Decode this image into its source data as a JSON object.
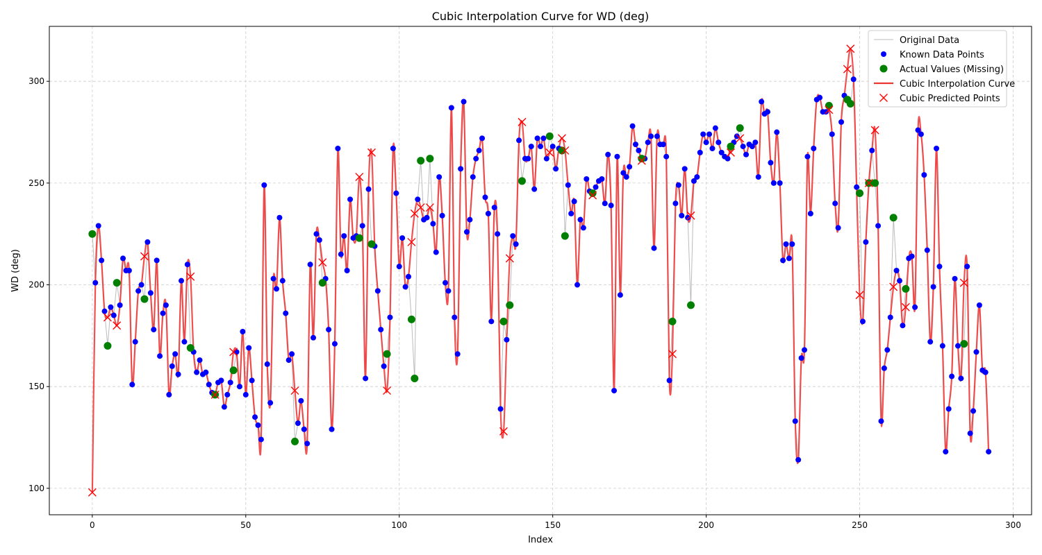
{
  "chart_data": {
    "type": "line",
    "title": "Cubic Interpolation Curve for WD (deg)",
    "xlabel": "Index",
    "ylabel": "WD (deg)",
    "xlim": [
      -14,
      306
    ],
    "ylim": [
      87,
      327
    ],
    "xticks": [
      0,
      50,
      100,
      150,
      200,
      250,
      300
    ],
    "yticks": [
      100,
      150,
      200,
      250,
      300
    ],
    "grid": true,
    "legend_position": "top-right",
    "colors": {
      "original": "#bbbbbb",
      "known": "#0000ff",
      "actual": "#008000",
      "cubic_curve": "#ee3333",
      "predicted": "#ff0000"
    },
    "legend": [
      {
        "label": "Original Data",
        "kind": "line",
        "color": "#bbbbbb"
      },
      {
        "label": "Known Data Points",
        "kind": "dot",
        "color": "#0000ff"
      },
      {
        "label": "Actual Values (Missing)",
        "kind": "dot-large",
        "color": "#008000"
      },
      {
        "label": "Cubic Interpolation Curve",
        "kind": "line-thick",
        "color": "#ee3333"
      },
      {
        "label": "Cubic Predicted Points",
        "kind": "x",
        "color": "#ff0000"
      }
    ],
    "known_points": [
      [
        1,
        201
      ],
      [
        2,
        229
      ],
      [
        3,
        212
      ],
      [
        4,
        187
      ],
      [
        6,
        189
      ],
      [
        7,
        185
      ],
      [
        9,
        190
      ],
      [
        10,
        213
      ],
      [
        11,
        207
      ],
      [
        12,
        207
      ],
      [
        13,
        151
      ],
      [
        14,
        172
      ],
      [
        15,
        197
      ],
      [
        16,
        200
      ],
      [
        18,
        221
      ],
      [
        19,
        196
      ],
      [
        20,
        178
      ],
      [
        21,
        212
      ],
      [
        22,
        165
      ],
      [
        23,
        186
      ],
      [
        24,
        190
      ],
      [
        25,
        146
      ],
      [
        26,
        160
      ],
      [
        27,
        166
      ],
      [
        28,
        156
      ],
      [
        29,
        202
      ],
      [
        30,
        172
      ],
      [
        31,
        210
      ],
      [
        33,
        167
      ],
      [
        34,
        157
      ],
      [
        35,
        163
      ],
      [
        36,
        156
      ],
      [
        37,
        157
      ],
      [
        38,
        151
      ],
      [
        39,
        147
      ],
      [
        41,
        152
      ],
      [
        42,
        153
      ],
      [
        43,
        140
      ],
      [
        44,
        146
      ],
      [
        45,
        152
      ],
      [
        47,
        167
      ],
      [
        48,
        150
      ],
      [
        49,
        177
      ],
      [
        50,
        146
      ],
      [
        51,
        169
      ],
      [
        52,
        153
      ],
      [
        53,
        135
      ],
      [
        54,
        131
      ],
      [
        55,
        124
      ],
      [
        56,
        249
      ],
      [
        57,
        161
      ],
      [
        58,
        142
      ],
      [
        59,
        203
      ],
      [
        60,
        198
      ],
      [
        61,
        233
      ],
      [
        62,
        202
      ],
      [
        63,
        186
      ],
      [
        64,
        163
      ],
      [
        65,
        166
      ],
      [
        67,
        132
      ],
      [
        68,
        143
      ],
      [
        69,
        129
      ],
      [
        70,
        122
      ],
      [
        71,
        210
      ],
      [
        72,
        174
      ],
      [
        73,
        225
      ],
      [
        74,
        222
      ],
      [
        76,
        203
      ],
      [
        77,
        178
      ],
      [
        78,
        129
      ],
      [
        79,
        171
      ],
      [
        80,
        267
      ],
      [
        81,
        215
      ],
      [
        82,
        224
      ],
      [
        83,
        207
      ],
      [
        84,
        242
      ],
      [
        85,
        223
      ],
      [
        86,
        224
      ],
      [
        88,
        229
      ],
      [
        89,
        154
      ],
      [
        90,
        247
      ],
      [
        92,
        219
      ],
      [
        93,
        197
      ],
      [
        94,
        178
      ],
      [
        95,
        160
      ],
      [
        97,
        184
      ],
      [
        98,
        267
      ],
      [
        99,
        245
      ],
      [
        100,
        209
      ],
      [
        101,
        223
      ],
      [
        102,
        199
      ],
      [
        103,
        204
      ],
      [
        106,
        242
      ],
      [
        108,
        232
      ],
      [
        109,
        233
      ],
      [
        111,
        230
      ],
      [
        112,
        216
      ],
      [
        113,
        253
      ],
      [
        114,
        234
      ],
      [
        115,
        201
      ],
      [
        116,
        197
      ],
      [
        117,
        287
      ],
      [
        118,
        184
      ],
      [
        119,
        166
      ],
      [
        120,
        257
      ],
      [
        121,
        290
      ],
      [
        122,
        226
      ],
      [
        123,
        232
      ],
      [
        124,
        253
      ],
      [
        125,
        262
      ],
      [
        126,
        266
      ],
      [
        127,
        272
      ],
      [
        128,
        243
      ],
      [
        129,
        235
      ],
      [
        130,
        182
      ],
      [
        131,
        238
      ],
      [
        132,
        225
      ],
      [
        133,
        139
      ],
      [
        135,
        173
      ],
      [
        137,
        224
      ],
      [
        138,
        220
      ],
      [
        139,
        271
      ],
      [
        141,
        262
      ],
      [
        142,
        262
      ],
      [
        143,
        268
      ],
      [
        144,
        247
      ],
      [
        145,
        272
      ],
      [
        146,
        268
      ],
      [
        147,
        272
      ],
      [
        148,
        262
      ],
      [
        150,
        268
      ],
      [
        151,
        257
      ],
      [
        152,
        267
      ],
      [
        155,
        249
      ],
      [
        156,
        235
      ],
      [
        157,
        241
      ],
      [
        158,
        200
      ],
      [
        159,
        232
      ],
      [
        160,
        228
      ],
      [
        161,
        252
      ],
      [
        162,
        246
      ],
      [
        164,
        248
      ],
      [
        165,
        251
      ],
      [
        166,
        252
      ],
      [
        167,
        240
      ],
      [
        168,
        264
      ],
      [
        169,
        239
      ],
      [
        170,
        148
      ],
      [
        171,
        263
      ],
      [
        172,
        195
      ],
      [
        173,
        255
      ],
      [
        174,
        253
      ],
      [
        175,
        258
      ],
      [
        176,
        278
      ],
      [
        177,
        269
      ],
      [
        178,
        266
      ],
      [
        180,
        262
      ],
      [
        181,
        270
      ],
      [
        182,
        273
      ],
      [
        183,
        218
      ],
      [
        184,
        273
      ],
      [
        185,
        269
      ],
      [
        186,
        269
      ],
      [
        187,
        263
      ],
      [
        188,
        153
      ],
      [
        190,
        240
      ],
      [
        191,
        249
      ],
      [
        192,
        234
      ],
      [
        193,
        257
      ],
      [
        194,
        233
      ],
      [
        196,
        251
      ],
      [
        197,
        253
      ],
      [
        198,
        265
      ],
      [
        199,
        274
      ],
      [
        200,
        270
      ],
      [
        201,
        274
      ],
      [
        202,
        267
      ],
      [
        203,
        277
      ],
      [
        204,
        270
      ],
      [
        205,
        265
      ],
      [
        206,
        263
      ],
      [
        207,
        262
      ],
      [
        208,
        268
      ],
      [
        209,
        270
      ],
      [
        210,
        273
      ],
      [
        212,
        268
      ],
      [
        213,
        264
      ],
      [
        214,
        269
      ],
      [
        215,
        268
      ],
      [
        216,
        270
      ],
      [
        217,
        253
      ],
      [
        218,
        290
      ],
      [
        219,
        284
      ],
      [
        220,
        285
      ],
      [
        221,
        260
      ],
      [
        222,
        250
      ],
      [
        223,
        275
      ],
      [
        224,
        250
      ],
      [
        225,
        212
      ],
      [
        226,
        220
      ],
      [
        227,
        213
      ],
      [
        228,
        220
      ],
      [
        229,
        133
      ],
      [
        230,
        114
      ],
      [
        231,
        164
      ],
      [
        232,
        168
      ],
      [
        233,
        263
      ],
      [
        234,
        235
      ],
      [
        235,
        267
      ],
      [
        236,
        291
      ],
      [
        237,
        292
      ],
      [
        238,
        285
      ],
      [
        239,
        285
      ],
      [
        241,
        274
      ],
      [
        242,
        240
      ],
      [
        243,
        228
      ],
      [
        244,
        280
      ],
      [
        245,
        293
      ],
      [
        248,
        301
      ],
      [
        249,
        248
      ],
      [
        251,
        182
      ],
      [
        252,
        221
      ],
      [
        254,
        266
      ],
      [
        256,
        229
      ],
      [
        257,
        133
      ],
      [
        258,
        159
      ],
      [
        259,
        168
      ],
      [
        260,
        184
      ],
      [
        262,
        207
      ],
      [
        263,
        202
      ],
      [
        264,
        180
      ],
      [
        266,
        213
      ],
      [
        267,
        214
      ],
      [
        268,
        189
      ],
      [
        269,
        276
      ],
      [
        270,
        274
      ],
      [
        271,
        254
      ],
      [
        272,
        217
      ],
      [
        273,
        172
      ],
      [
        274,
        199
      ],
      [
        275,
        267
      ],
      [
        276,
        209
      ],
      [
        277,
        170
      ],
      [
        278,
        118
      ],
      [
        279,
        139
      ],
      [
        280,
        155
      ],
      [
        281,
        203
      ],
      [
        282,
        170
      ],
      [
        283,
        154
      ],
      [
        285,
        209
      ],
      [
        286,
        127
      ],
      [
        287,
        138
      ],
      [
        288,
        167
      ],
      [
        289,
        190
      ],
      [
        290,
        158
      ],
      [
        291,
        157
      ],
      [
        292,
        118
      ]
    ],
    "actual_missing_points": [
      [
        0,
        225
      ],
      [
        5,
        170
      ],
      [
        8,
        201
      ],
      [
        17,
        193
      ],
      [
        32,
        169
      ],
      [
        40,
        146
      ],
      [
        46,
        158
      ],
      [
        66,
        123
      ],
      [
        75,
        201
      ],
      [
        87,
        223
      ],
      [
        91,
        220
      ],
      [
        96,
        166
      ],
      [
        104,
        183
      ],
      [
        105,
        154
      ],
      [
        107,
        261
      ],
      [
        110,
        262
      ],
      [
        134,
        182
      ],
      [
        136,
        190
      ],
      [
        140,
        251
      ],
      [
        149,
        273
      ],
      [
        153,
        266
      ],
      [
        154,
        224
      ],
      [
        163,
        245
      ],
      [
        179,
        262
      ],
      [
        189,
        182
      ],
      [
        195,
        190
      ],
      [
        208,
        268
      ],
      [
        211,
        277
      ],
      [
        240,
        288
      ],
      [
        246,
        291
      ],
      [
        247,
        289
      ],
      [
        250,
        245
      ],
      [
        253,
        250
      ],
      [
        255,
        250
      ],
      [
        261,
        233
      ],
      [
        265,
        198
      ],
      [
        284,
        171
      ]
    ],
    "cubic_predicted_points": [
      [
        0,
        98
      ],
      [
        5,
        184
      ],
      [
        8,
        180
      ],
      [
        17,
        214
      ],
      [
        32,
        204
      ],
      [
        40,
        146
      ],
      [
        46,
        167
      ],
      [
        66,
        148
      ],
      [
        75,
        211
      ],
      [
        87,
        253
      ],
      [
        91,
        265
      ],
      [
        96,
        148
      ],
      [
        104,
        221
      ],
      [
        105,
        235
      ],
      [
        107,
        238
      ],
      [
        110,
        238
      ],
      [
        134,
        128
      ],
      [
        136,
        213
      ],
      [
        140,
        280
      ],
      [
        149,
        265
      ],
      [
        153,
        272
      ],
      [
        154,
        266
      ],
      [
        163,
        244
      ],
      [
        179,
        261
      ],
      [
        189,
        166
      ],
      [
        195,
        234
      ],
      [
        208,
        265
      ],
      [
        211,
        272
      ],
      [
        240,
        286
      ],
      [
        246,
        306
      ],
      [
        247,
        316
      ],
      [
        250,
        195
      ],
      [
        253,
        250
      ],
      [
        255,
        276
      ],
      [
        261,
        199
      ],
      [
        265,
        189
      ],
      [
        284,
        201
      ]
    ]
  }
}
